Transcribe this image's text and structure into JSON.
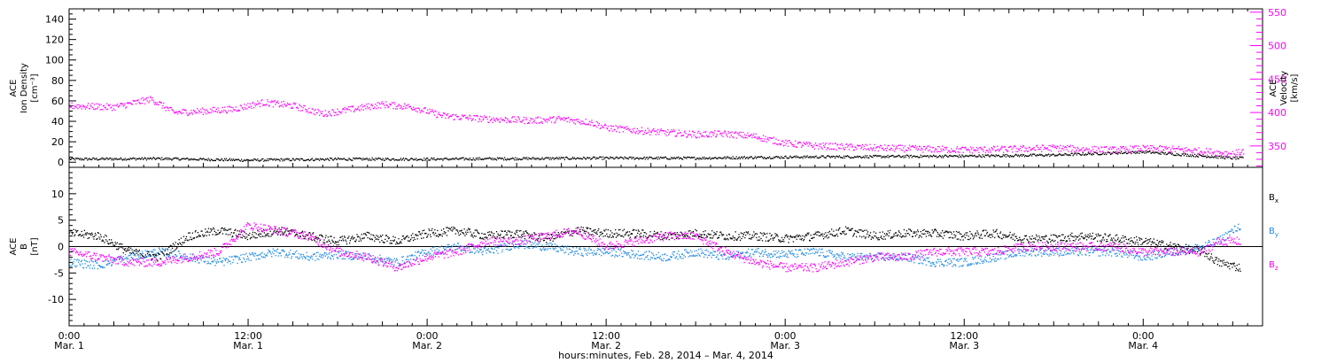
{
  "chart_data": [
    {
      "type": "scatter",
      "panel": "top",
      "ylabel": [
        "ACE",
        "Ion Density",
        "[cm⁻³]"
      ],
      "ylabel_right": [
        "ACE",
        "Velocity",
        "[km/s]"
      ],
      "ylim": [
        -5,
        150
      ],
      "yticks": [
        0,
        20,
        40,
        60,
        80,
        100,
        120,
        140
      ],
      "ylim_right": [
        318,
        555
      ],
      "yticks_right": [
        350,
        400,
        450,
        500,
        550
      ],
      "xlim_hours": [
        0,
        80
      ],
      "series": [
        {
          "color": "#000000",
          "axis": "left",
          "points": [
            [
              0,
              3
            ],
            [
              6,
              3.5
            ],
            [
              12,
              2
            ],
            [
              18,
              3
            ],
            [
              24,
              3
            ],
            [
              30,
              3.5
            ],
            [
              36,
              4
            ],
            [
              42,
              4
            ],
            [
              48,
              5
            ],
            [
              54,
              5.5
            ],
            [
              60,
              6
            ],
            [
              66,
              7
            ],
            [
              72,
              10
            ],
            [
              78,
              4
            ],
            [
              78.7,
              4
            ]
          ]
        },
        {
          "color": "#ff00ff",
          "axis": "right",
          "points": [
            [
              0,
              410
            ],
            [
              3,
              408
            ],
            [
              5.5,
              420
            ],
            [
              7,
              400
            ],
            [
              9,
              402
            ],
            [
              11,
              405
            ],
            [
              13,
              415
            ],
            [
              15,
              410
            ],
            [
              17,
              398
            ],
            [
              19,
              405
            ],
            [
              21,
              412
            ],
            [
              23,
              408
            ],
            [
              25,
              395
            ],
            [
              28,
              390
            ],
            [
              31,
              388
            ],
            [
              33,
              390
            ],
            [
              35,
              385
            ],
            [
              36,
              377
            ],
            [
              38,
              373
            ],
            [
              40,
              370
            ],
            [
              42,
              367
            ],
            [
              44,
              368
            ],
            [
              46,
              364
            ],
            [
              48,
              354
            ],
            [
              50,
              350
            ],
            [
              54,
              347
            ],
            [
              58,
              345
            ],
            [
              60,
              344
            ],
            [
              63,
              345
            ],
            [
              66,
              347
            ],
            [
              68,
              345
            ],
            [
              70,
              344
            ],
            [
              72,
              346
            ],
            [
              74,
              345
            ],
            [
              76,
              342
            ],
            [
              78,
              338
            ],
            [
              78.7,
              342
            ]
          ]
        }
      ]
    },
    {
      "type": "scatter",
      "panel": "bottom",
      "ylabel": [
        "ACE",
        "B",
        "[nT]"
      ],
      "ylim": [
        -15,
        15
      ],
      "yticks": [
        -10,
        -5,
        0,
        5,
        10
      ],
      "xlim_hours": [
        0,
        80
      ],
      "series": [
        {
          "name": "Bx",
          "color": "#000000",
          "points": [
            [
              0,
              2.5
            ],
            [
              2,
              2
            ],
            [
              4,
              -1
            ],
            [
              6,
              -2
            ],
            [
              8,
              2
            ],
            [
              10,
              3
            ],
            [
              12,
              2
            ],
            [
              14,
              3
            ],
            [
              16,
              2
            ],
            [
              18,
              1
            ],
            [
              20,
              2
            ],
            [
              22,
              1
            ],
            [
              24,
              2.5
            ],
            [
              26,
              3
            ],
            [
              28,
              2
            ],
            [
              30,
              2.5
            ],
            [
              32,
              1.5
            ],
            [
              34,
              3
            ],
            [
              36,
              2.5
            ],
            [
              38,
              2.5
            ],
            [
              40,
              2
            ],
            [
              42,
              2.5
            ],
            [
              44,
              2
            ],
            [
              46,
              2
            ],
            [
              48,
              1.5
            ],
            [
              50,
              2
            ],
            [
              52,
              3
            ],
            [
              54,
              2
            ],
            [
              56,
              2.5
            ],
            [
              58,
              2.5
            ],
            [
              60,
              2
            ],
            [
              62,
              2.5
            ],
            [
              64,
              1.5
            ],
            [
              66,
              1.5
            ],
            [
              68,
              2
            ],
            [
              70,
              1.5
            ],
            [
              72,
              1
            ],
            [
              74,
              0
            ],
            [
              76,
              -1
            ],
            [
              77,
              -3
            ],
            [
              78.5,
              -4
            ]
          ]
        },
        {
          "name": "By",
          "color": "#1e88e5",
          "points": [
            [
              0,
              -3
            ],
            [
              2,
              -3.5
            ],
            [
              4,
              -2
            ],
            [
              6,
              -1
            ],
            [
              8,
              -2
            ],
            [
              10,
              -3
            ],
            [
              12,
              -2
            ],
            [
              14,
              -1
            ],
            [
              16,
              -2
            ],
            [
              18,
              -1.5
            ],
            [
              20,
              -2
            ],
            [
              22,
              -3
            ],
            [
              24,
              -1
            ],
            [
              26,
              0
            ],
            [
              28,
              -1
            ],
            [
              30,
              0.5
            ],
            [
              32,
              0
            ],
            [
              34,
              -1
            ],
            [
              36,
              -1
            ],
            [
              38,
              -1.5
            ],
            [
              40,
              -2
            ],
            [
              42,
              -1
            ],
            [
              44,
              -2
            ],
            [
              46,
              -1
            ],
            [
              48,
              -1.5
            ],
            [
              50,
              -1
            ],
            [
              52,
              -2
            ],
            [
              54,
              -2
            ],
            [
              56,
              -2
            ],
            [
              58,
              -3
            ],
            [
              60,
              -3
            ],
            [
              62,
              -2
            ],
            [
              64,
              -1
            ],
            [
              66,
              -1
            ],
            [
              68,
              -1
            ],
            [
              70,
              -1
            ],
            [
              72,
              -2
            ],
            [
              74,
              -1
            ],
            [
              76,
              0
            ],
            [
              77,
              1
            ],
            [
              78.5,
              4
            ]
          ]
        },
        {
          "name": "Bz",
          "color": "#ff00ff",
          "points": [
            [
              0,
              -1
            ],
            [
              2,
              -2
            ],
            [
              4,
              -3
            ],
            [
              6,
              -3
            ],
            [
              8,
              -2
            ],
            [
              10,
              -1
            ],
            [
              12,
              4
            ],
            [
              14,
              3
            ],
            [
              16,
              2
            ],
            [
              18,
              -1
            ],
            [
              20,
              -2
            ],
            [
              22,
              -4
            ],
            [
              24,
              -2
            ],
            [
              26,
              -1
            ],
            [
              28,
              1
            ],
            [
              30,
              1
            ],
            [
              32,
              2
            ],
            [
              34,
              3
            ],
            [
              36,
              0
            ],
            [
              38,
              1
            ],
            [
              40,
              2
            ],
            [
              42,
              2
            ],
            [
              44,
              -1
            ],
            [
              46,
              -3
            ],
            [
              48,
              -4
            ],
            [
              50,
              -4
            ],
            [
              52,
              -3
            ],
            [
              54,
              -2
            ],
            [
              56,
              -2
            ],
            [
              58,
              -1
            ],
            [
              60,
              -1
            ],
            [
              62,
              -1
            ],
            [
              64,
              0
            ],
            [
              66,
              0
            ],
            [
              68,
              0
            ],
            [
              70,
              0
            ],
            [
              72,
              -1
            ],
            [
              74,
              -1
            ],
            [
              76,
              -1
            ],
            [
              77,
              1
            ],
            [
              78.5,
              1
            ]
          ]
        }
      ],
      "legend": [
        "Bx",
        "By",
        "Bz"
      ],
      "zero_line": true
    }
  ],
  "xaxis": {
    "ticks": [
      {
        "hour": 0,
        "time": "0:00",
        "date": "Mar. 1"
      },
      {
        "hour": 12,
        "time": "12:00",
        "date": "Mar. 1"
      },
      {
        "hour": 24,
        "time": "0:00",
        "date": "Mar. 2"
      },
      {
        "hour": 36,
        "time": "12:00",
        "date": "Mar. 2"
      },
      {
        "hour": 48,
        "time": "0:00",
        "date": "Mar. 3"
      },
      {
        "hour": 60,
        "time": "12:00",
        "date": "Mar. 3"
      },
      {
        "hour": 72,
        "time": "0:00",
        "date": "Mar. 4"
      }
    ],
    "label": "hours:minutes, Feb. 28, 2014 – Mar.  4, 2014"
  },
  "legend_labels": [
    {
      "base": "B",
      "sub": "x",
      "color": "#000000"
    },
    {
      "base": "B",
      "sub": "y",
      "color": "#1e88e5"
    },
    {
      "base": "B",
      "sub": "z",
      "color": "#ff00ff"
    }
  ]
}
